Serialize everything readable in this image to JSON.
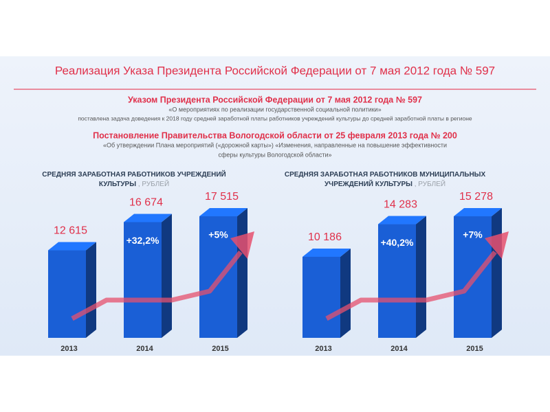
{
  "title": "Реализация Указа Президента Российской Федерации от 7 мая 2012 года № 597",
  "decree": {
    "heading": "Указом Президента Российской Федерации от 7 мая 2012 года № 597",
    "lines": [
      "«О мероприятиях по реализации государственной социальной политики»",
      "поставлена задача доведения к 2018 году средней заработной платы работников учреждений культуры до средней заработной платы в регионе"
    ]
  },
  "resolution": {
    "heading": "Постановление Правительства Вологодской области от 25 февраля 2013 года № 200",
    "lines": [
      "«Об утверждении Плана мероприятий («дорожной карты») «Изменения, направленные на повышение эффективности",
      "сферы культуры Вологодской области»"
    ]
  },
  "chart_data": [
    {
      "type": "bar",
      "title": "СРЕДНЯЯ ЗАРАБОТНАЯ РАБОТНИКОВ УЧРЕЖДЕНИЙ КУЛЬТУРЫ",
      "unit": ", РУБЛЕЙ",
      "categories": [
        "2013",
        "2014",
        "2015"
      ],
      "values": [
        12615,
        16674,
        17515
      ],
      "value_labels": [
        "12 615",
        "16 674",
        "17 515"
      ],
      "annotations": [
        "+32,2%",
        "+5%"
      ],
      "color": "#1a5fd6"
    },
    {
      "type": "bar",
      "title": "СРЕДНЯЯ ЗАРАБОТНАЯ РАБОТНИКОВ МУНИЦИПАЛЬНЫХ УЧРЕЖДЕНИЙ КУЛЬТУРЫ",
      "unit": ", РУБЛЕЙ",
      "categories": [
        "2013",
        "2014",
        "2015"
      ],
      "values": [
        10186,
        14283,
        15278
      ],
      "value_labels": [
        "10 186",
        "14 283",
        "15 278"
      ],
      "annotations": [
        "+40,2%",
        "+7%"
      ],
      "color": "#1a5fd6"
    }
  ]
}
